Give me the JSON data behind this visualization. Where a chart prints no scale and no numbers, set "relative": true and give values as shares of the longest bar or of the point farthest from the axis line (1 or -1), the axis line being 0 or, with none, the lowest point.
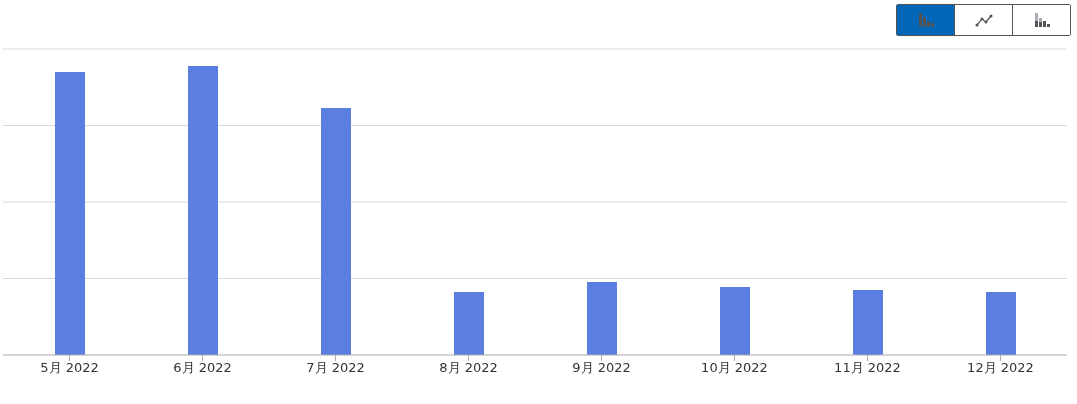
{
  "chart_data": {
    "type": "bar",
    "relative": true,
    "categories": [
      "5月 2022",
      "6月 2022",
      "7月 2022",
      "8月 2022",
      "9月 2022",
      "10月 2022",
      "11月 2022",
      "12月 2022"
    ],
    "values": [
      0.979,
      1,
      0.855,
      0.218,
      0.253,
      0.235,
      0.225,
      0.218
    ],
    "color": "#5b7fe1",
    "grid": "y"
  }
}
